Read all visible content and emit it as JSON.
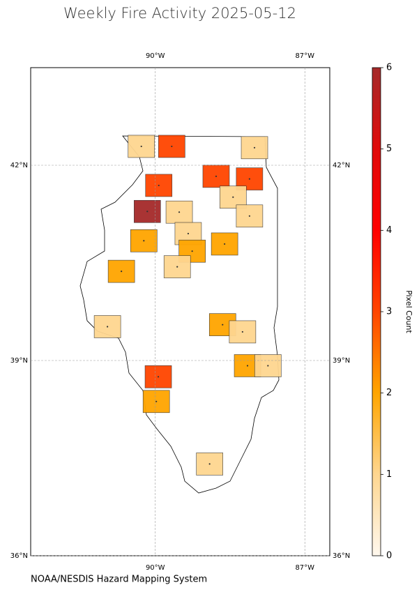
{
  "chart_data": {
    "type": "map",
    "title": "Weekly Fire Activity 2025-05-12",
    "source": "NOAA/NESDIS Hazard Mapping System",
    "xlim": [
      -92.5,
      -86.5
    ],
    "ylim": [
      36,
      43.5
    ],
    "xticks": [
      {
        "value": -90,
        "label": "90°W"
      },
      {
        "value": -87,
        "label": "87°W"
      }
    ],
    "yticks": [
      {
        "value": 36,
        "label": "36°N"
      },
      {
        "value": 39,
        "label": "39°N"
      },
      {
        "value": 42,
        "label": "42°N"
      }
    ],
    "grid": true,
    "counties": [
      {
        "lon": -90.28,
        "lat": 42.29,
        "value": 1
      },
      {
        "lon": -89.67,
        "lat": 42.29,
        "value": 3
      },
      {
        "lon": -88.01,
        "lat": 42.27,
        "value": 1
      },
      {
        "lon": -88.78,
        "lat": 41.83,
        "value": 3
      },
      {
        "lon": -88.11,
        "lat": 41.79,
        "value": 3
      },
      {
        "lon": -89.93,
        "lat": 41.69,
        "value": 3
      },
      {
        "lon": -90.16,
        "lat": 41.29,
        "value": 6
      },
      {
        "lon": -89.52,
        "lat": 41.28,
        "value": 1
      },
      {
        "lon": -88.44,
        "lat": 41.51,
        "value": 1
      },
      {
        "lon": -88.11,
        "lat": 41.22,
        "value": 1
      },
      {
        "lon": -90.23,
        "lat": 40.84,
        "value": 2
      },
      {
        "lon": -89.34,
        "lat": 40.95,
        "value": 1
      },
      {
        "lon": -89.26,
        "lat": 40.68,
        "value": 2
      },
      {
        "lon": -88.61,
        "lat": 40.79,
        "value": 2
      },
      {
        "lon": -89.56,
        "lat": 40.44,
        "value": 1
      },
      {
        "lon": -90.68,
        "lat": 40.37,
        "value": 2
      },
      {
        "lon": -90.96,
        "lat": 39.52,
        "value": 1
      },
      {
        "lon": -88.65,
        "lat": 39.55,
        "value": 2
      },
      {
        "lon": -88.25,
        "lat": 39.44,
        "value": 1
      },
      {
        "lon": -88.15,
        "lat": 38.92,
        "value": 2
      },
      {
        "lon": -87.74,
        "lat": 38.92,
        "value": 1
      },
      {
        "lon": -89.94,
        "lat": 38.75,
        "value": 3
      },
      {
        "lon": -89.98,
        "lat": 38.37,
        "value": 2
      },
      {
        "lon": -88.91,
        "lat": 37.41,
        "value": 1
      }
    ],
    "colorbar": {
      "label": "Pixel Count",
      "lim": [
        0,
        6
      ],
      "ticks": [
        0,
        1,
        2,
        3,
        4,
        5,
        6
      ],
      "colors": [
        "#fff8ee",
        "#fed690",
        "#ffa500",
        "#ff4500",
        "#ff0000",
        "#e00a0a",
        "#a52a2a"
      ]
    }
  }
}
